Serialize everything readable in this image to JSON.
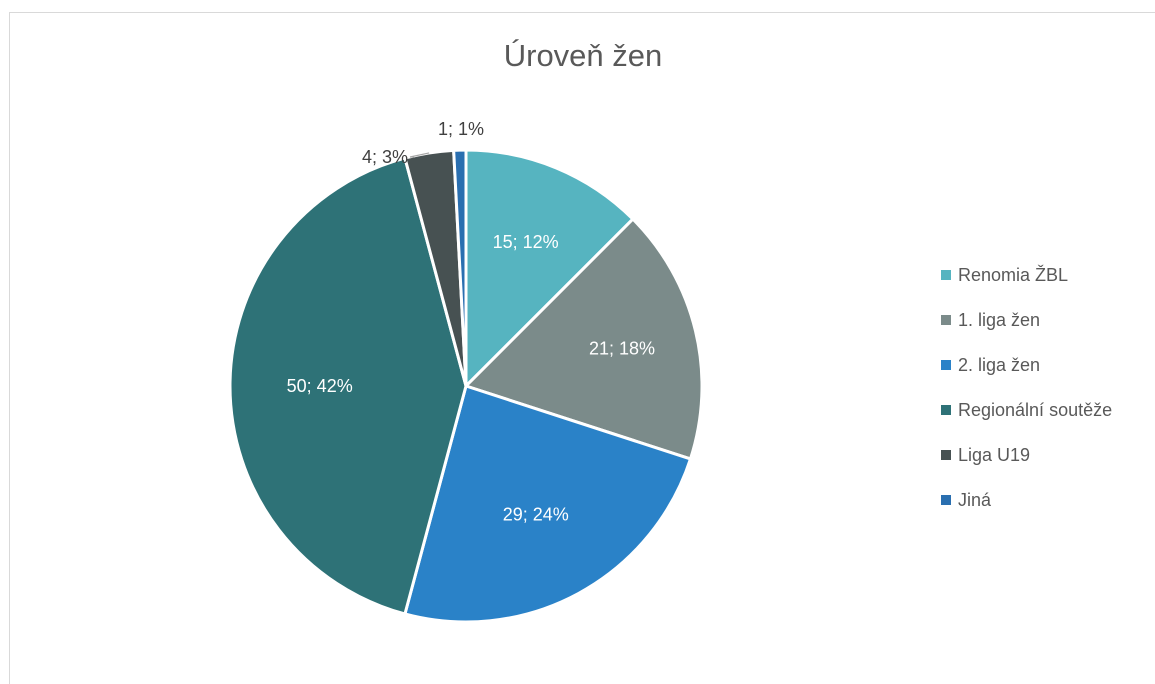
{
  "chart_data": {
    "type": "pie",
    "title": "Úroveň žen",
    "categories": [
      "Renomia ŽBL",
      "1. liga žen",
      "2. liga žen",
      "Regionální soutěže",
      "Liga U19",
      "Jiná"
    ],
    "values": [
      15,
      21,
      29,
      50,
      4,
      1
    ],
    "data_labels": [
      "15; 12%",
      "21; 18%",
      "29; 24%",
      "50; 42%",
      "4; 3%",
      "1; 1%"
    ],
    "colors": [
      "#56b4c0",
      "#7b8b8a",
      "#2a82c8",
      "#2e7277",
      "#475152",
      "#2a6fb0"
    ],
    "legend_position": "right"
  }
}
